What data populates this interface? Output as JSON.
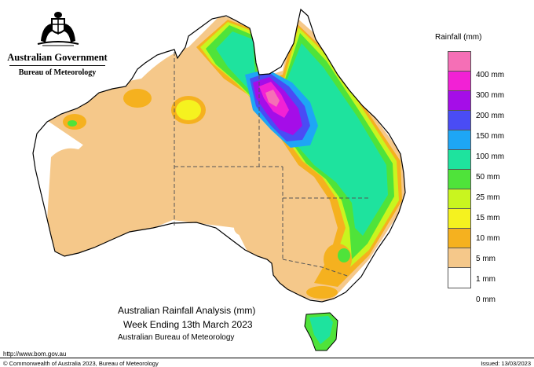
{
  "header": {
    "government": "Australian Government",
    "bureau": "Bureau of Meteorology"
  },
  "title": {
    "line1": "Australian Rainfall Analysis (mm)",
    "line2": "Week Ending 13th March 2023",
    "line3": "Australian Bureau of Meteorology"
  },
  "legend": {
    "title": "Rainfall (mm)",
    "items": [
      {
        "label": "400 mm",
        "color": "#f56fb6"
      },
      {
        "label": "300 mm",
        "color": "#f221d5"
      },
      {
        "label": "200 mm",
        "color": "#a50de8"
      },
      {
        "label": "150 mm",
        "color": "#4a4cf5"
      },
      {
        "label": "100 mm",
        "color": "#1ea6f5"
      },
      {
        "label": "50 mm",
        "color": "#1ee39e"
      },
      {
        "label": "25 mm",
        "color": "#4fe33a"
      },
      {
        "label": "15 mm",
        "color": "#c9f51f"
      },
      {
        "label": "10 mm",
        "color": "#f5f21f"
      },
      {
        "label": "5 mm",
        "color": "#f5b11f"
      },
      {
        "label": "1 mm",
        "color": "#f5c88a"
      },
      {
        "label": "0 mm",
        "color": "#ffffff"
      }
    ]
  },
  "footer": {
    "url": "http://www.bom.gov.au",
    "copyright": "© Commonwealth of Australia 2023, Bureau of Meteorology",
    "issued": "Issued: 13/03/2023"
  },
  "map": {
    "region": "Australia",
    "colors": {
      "outline": "#000000",
      "state_border": "#555555"
    }
  }
}
